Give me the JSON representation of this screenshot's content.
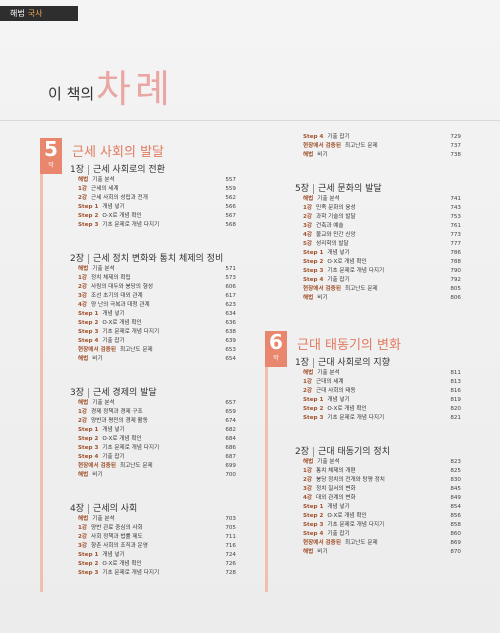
{
  "header": {
    "tab": [
      "해법",
      "국사"
    ],
    "title_small": "이 책의",
    "title_big": "차례"
  },
  "parts": [
    {
      "number": "5",
      "unit": "막",
      "title": "근세 사회의 발달",
      "chapters": [
        {
          "label": "1장",
          "title": "근세 사회로의 전환",
          "items": [
            {
              "label": "해법",
              "text": "기출 분석",
              "page": 557
            },
            {
              "label": "1강",
              "text": "근세의 세계",
              "page": 559
            },
            {
              "label": "2강",
              "text": "근세 사회의 성립과 전개",
              "page": 562
            },
            {
              "label": "Step 1",
              "text": "개념 넣기",
              "page": 566
            },
            {
              "label": "Step 2",
              "text": "O·X로 개념 확인",
              "page": 567
            },
            {
              "label": "Step 3",
              "text": "기초 문제로 개념 다지기",
              "page": 568
            }
          ]
        },
        {
          "label": "2장",
          "title": "근세 정치 변화와 통치 체제의 정비",
          "items": [
            {
              "label": "해법",
              "text": "기출 분석",
              "page": 571
            },
            {
              "label": "1강",
              "text": "정치 체제의 확립",
              "page": 573
            },
            {
              "label": "2강",
              "text": "사림의 대두와 붕당의 형성",
              "page": 606
            },
            {
              "label": "3강",
              "text": "조선 초기의 대외 관계",
              "page": 617
            },
            {
              "label": "4강",
              "text": "양 난의 극복과 대청 관계",
              "page": 623
            },
            {
              "label": "Step 1",
              "text": "개념 넣기",
              "page": 634
            },
            {
              "label": "Step 2",
              "text": "O·X로 개념 확인",
              "page": 636
            },
            {
              "label": "Step 3",
              "text": "기초 문제로 개념 다지기",
              "page": 638
            },
            {
              "label": "Step 4",
              "text": "기출 잡기",
              "page": 639
            },
            {
              "label": "현장에서 검증된",
              "text": "최고난도 문제",
              "page": 653
            },
            {
              "label": "해법",
              "text": "비기",
              "page": 654
            }
          ]
        },
        {
          "label": "3장",
          "title": "근세 경제의 발달",
          "items": [
            {
              "label": "해법",
              "text": "기출 분석",
              "page": 657
            },
            {
              "label": "1강",
              "text": "경제 정책과 경제 구조",
              "page": 659
            },
            {
              "label": "2강",
              "text": "양반과 평민의 경제 활동",
              "page": 674
            },
            {
              "label": "Step 1",
              "text": "개념 넣기",
              "page": 682
            },
            {
              "label": "Step 2",
              "text": "O·X로 개념 확인",
              "page": 684
            },
            {
              "label": "Step 3",
              "text": "기초 문제로 개념 다지기",
              "page": 686
            },
            {
              "label": "Step 4",
              "text": "기출 잡기",
              "page": 687
            },
            {
              "label": "현장에서 검증된",
              "text": "최고난도 문제",
              "page": 699
            },
            {
              "label": "해법",
              "text": "비기",
              "page": 700
            }
          ]
        },
        {
          "label": "4장",
          "title": "근세의 사회",
          "items": [
            {
              "label": "해법",
              "text": "기출 분석",
              "page": 703
            },
            {
              "label": "1강",
              "text": "양반 관료 중심의 사회",
              "page": 705
            },
            {
              "label": "2강",
              "text": "사회 정책과 법률 제도",
              "page": 711
            },
            {
              "label": "3강",
              "text": "향촌 사회의 조직과 운영",
              "page": 716
            },
            {
              "label": "Step 1",
              "text": "개념 넣기",
              "page": 724
            },
            {
              "label": "Step 2",
              "text": "O·X로 개념 확인",
              "page": 726
            },
            {
              "label": "Step 3",
              "text": "기초 문제로 개념 다지기",
              "page": 728
            },
            {
              "label": "Step 4",
              "text": "기출 잡기",
              "page": 729
            },
            {
              "label": "현장에서 검증된",
              "text": "최고난도 문제",
              "page": 737
            },
            {
              "label": "해법",
              "text": "비기",
              "page": 738
            }
          ]
        },
        {
          "label": "5장",
          "title": "근세 문화의 발달",
          "items": [
            {
              "label": "해법",
              "text": "기출 분석",
              "page": 741
            },
            {
              "label": "1강",
              "text": "민족 문화의 융성",
              "page": 743
            },
            {
              "label": "2강",
              "text": "과학 기술의 발달",
              "page": 753
            },
            {
              "label": "3강",
              "text": "건축과 예술",
              "page": 761
            },
            {
              "label": "4강",
              "text": "불교와 민간 신앙",
              "page": 773
            },
            {
              "label": "5강",
              "text": "성리학의 발달",
              "page": 777
            },
            {
              "label": "Step 1",
              "text": "개념 넣기",
              "page": 786
            },
            {
              "label": "Step 2",
              "text": "O·X로 개념 확인",
              "page": 788
            },
            {
              "label": "Step 3",
              "text": "기초 문제로 개념 다지기",
              "page": 790
            },
            {
              "label": "Step 4",
              "text": "기출 잡기",
              "page": 792
            },
            {
              "label": "현장에서 검증된",
              "text": "최고난도 문제",
              "page": 805
            },
            {
              "label": "해법",
              "text": "비기",
              "page": 806
            }
          ]
        }
      ]
    },
    {
      "number": "6",
      "unit": "막",
      "title": "근대 태동기의 변화",
      "chapters": [
        {
          "label": "1장",
          "title": "근대 사회로의 지향",
          "items": [
            {
              "label": "해법",
              "text": "기출 분석",
              "page": 811
            },
            {
              "label": "1강",
              "text": "근대의 세계",
              "page": 813
            },
            {
              "label": "2강",
              "text": "근대 사회의 태동",
              "page": 816
            },
            {
              "label": "Step 1",
              "text": "개념 넣기",
              "page": 819
            },
            {
              "label": "Step 2",
              "text": "O·X로 개념 확인",
              "page": 820
            },
            {
              "label": "Step 3",
              "text": "기초 문제로 개념 다지기",
              "page": 821
            }
          ]
        },
        {
          "label": "2장",
          "title": "근대 태동기의 정치",
          "items": [
            {
              "label": "해법",
              "text": "기출 분석",
              "page": 823
            },
            {
              "label": "1강",
              "text": "통치 체제의 개편",
              "page": 825
            },
            {
              "label": "2강",
              "text": "붕당 정치의 전개와 탕평 정치",
              "page": 830
            },
            {
              "label": "3강",
              "text": "정치 질서의 변화",
              "page": 845
            },
            {
              "label": "4강",
              "text": "대외 관계의 변화",
              "page": 849
            },
            {
              "label": "Step 1",
              "text": "개념 넣기",
              "page": 854
            },
            {
              "label": "Step 2",
              "text": "O·X로 개념 확인",
              "page": 856
            },
            {
              "label": "Step 3",
              "text": "기초 문제로 개념 다지기",
              "page": 858
            },
            {
              "label": "Step 4",
              "text": "기출 잡기",
              "page": 860
            },
            {
              "label": "현장에서 검증된",
              "text": "최고난도 문제",
              "page": 869
            },
            {
              "label": "해법",
              "text": "비기",
              "page": 870
            }
          ]
        }
      ]
    }
  ]
}
